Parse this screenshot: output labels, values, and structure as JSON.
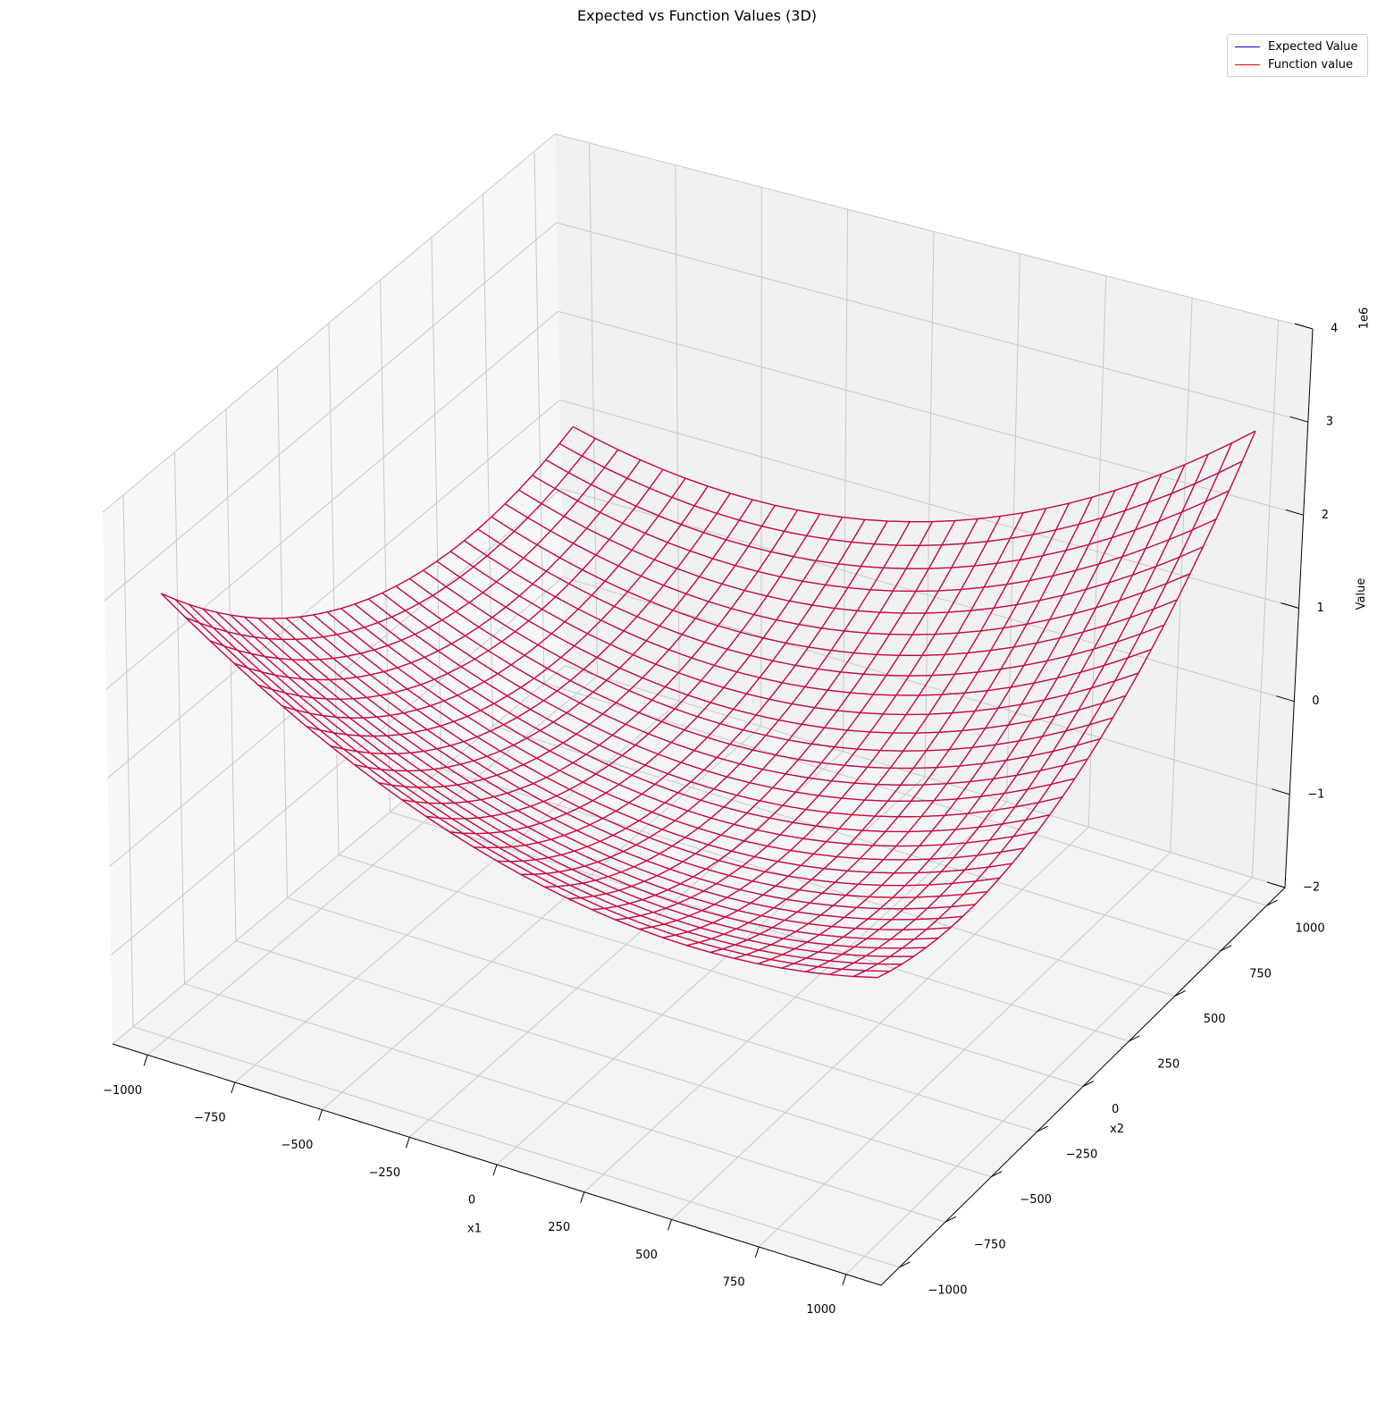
{
  "chart_data": {
    "type": "wireframe",
    "title": "Expected vs Function Values (3D)",
    "xlabel": "x1",
    "ylabel": "x2",
    "zlabel": "Value",
    "z_offset_label": "1e6",
    "xlim": [
      -1100,
      1100
    ],
    "ylim": [
      -1100,
      1100
    ],
    "zlim": [
      -2,
      4
    ],
    "x_ticks": [
      -1000,
      -750,
      -500,
      -250,
      0,
      250,
      500,
      750,
      1000
    ],
    "y_ticks": [
      -1000,
      -750,
      -500,
      -250,
      0,
      250,
      500,
      750,
      1000
    ],
    "z_ticks": [
      -2,
      -1,
      0,
      1,
      2,
      3,
      4
    ],
    "x_tick_labels": [
      "−1000",
      "−750",
      "−500",
      "−250",
      "0",
      "250",
      "500",
      "750",
      "1000"
    ],
    "y_tick_labels": [
      "−1000",
      "−750",
      "−500",
      "−250",
      "0",
      "250",
      "500",
      "750",
      "1000"
    ],
    "z_tick_labels": [
      "−2",
      "−1",
      "0",
      "1",
      "2",
      "3",
      "4"
    ],
    "grid": true,
    "legend_position": "top-right",
    "surface_formula": "x1^2 + x1*x2 + x2^2 (in units of 1e6)",
    "grid_range": [
      -1000,
      1000
    ],
    "grid_steps": 30,
    "corner_values_1e6": {
      "x1=-1000,x2=-1000": 3.0,
      "x1=1000,x2=1000": 3.0,
      "x1=-1000,x2=1000": 1.0,
      "x1=1000,x2=-1000": 1.0
    },
    "series": [
      {
        "name": "Expected Value",
        "color": "#0000ff"
      },
      {
        "name": "Function value",
        "color": "#ff0000"
      }
    ]
  }
}
